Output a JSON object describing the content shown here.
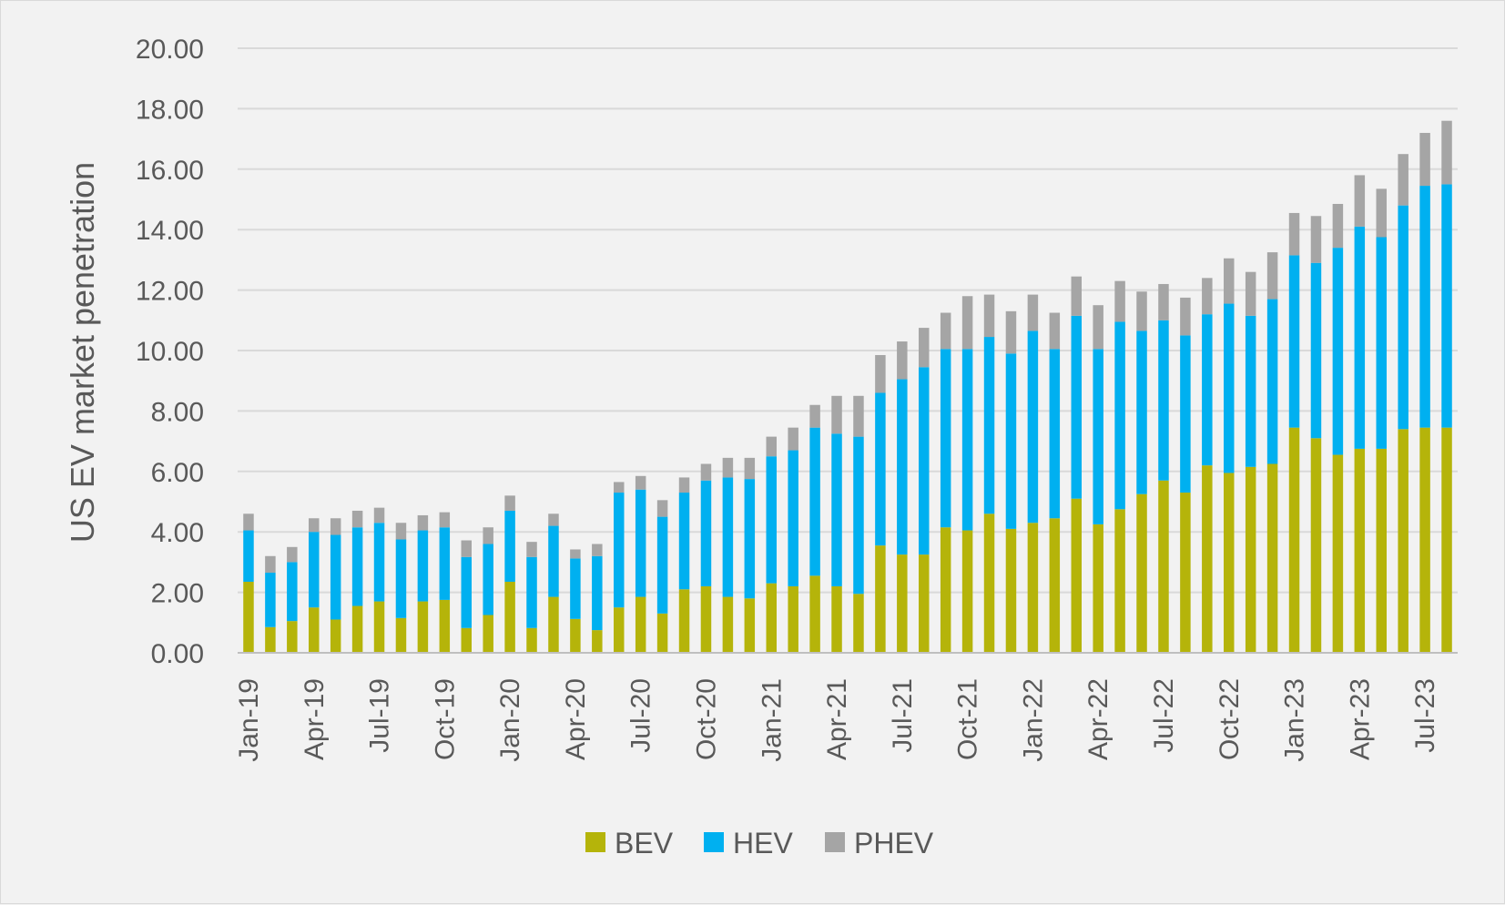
{
  "chart_data": {
    "type": "bar",
    "stacked": true,
    "title": "",
    "xlabel": "",
    "ylabel": "US EV market penetration",
    "ylim": [
      0,
      20
    ],
    "yticks": [
      "0.00",
      "2.00",
      "4.00",
      "6.00",
      "8.00",
      "10.00",
      "12.00",
      "14.00",
      "16.00",
      "18.00",
      "20.00"
    ],
    "grid": true,
    "legend_position": "bottom",
    "categories": [
      "Jan-19",
      "Feb-19",
      "Mar-19",
      "Apr-19",
      "May-19",
      "Jun-19",
      "Jul-19",
      "Aug-19",
      "Sep-19",
      "Oct-19",
      "Nov-19",
      "Dec-19",
      "Jan-20",
      "Feb-20",
      "Mar-20",
      "Apr-20",
      "May-20",
      "Jun-20",
      "Jul-20",
      "Aug-20",
      "Sep-20",
      "Oct-20",
      "Nov-20",
      "Dec-20",
      "Jan-21",
      "Feb-21",
      "Mar-21",
      "Apr-21",
      "May-21",
      "Jun-21",
      "Jul-21",
      "Aug-21",
      "Sep-21",
      "Oct-21",
      "Nov-21",
      "Dec-21",
      "Jan-22",
      "Feb-22",
      "Mar-22",
      "Apr-22",
      "May-22",
      "Jun-22",
      "Jul-22",
      "Aug-22",
      "Sep-22",
      "Oct-22",
      "Nov-22",
      "Dec-22",
      "Jan-23",
      "Feb-23",
      "Mar-23",
      "Apr-23",
      "May-23",
      "Jun-23",
      "Jul-23",
      "Aug-23"
    ],
    "tick_labels": [
      "Jan-19",
      "Apr-19",
      "Jul-19",
      "Oct-19",
      "Jan-20",
      "Apr-20",
      "Jul-20",
      "Oct-20",
      "Jan-21",
      "Apr-21",
      "Jul-21",
      "Oct-21",
      "Jan-22",
      "Apr-22",
      "Jul-22",
      "Oct-22",
      "Jan-23",
      "Apr-23",
      "Jul-23"
    ],
    "series": [
      {
        "name": "BEV",
        "color": "#b5b40a",
        "values": [
          2.35,
          0.85,
          1.05,
          1.5,
          1.1,
          1.55,
          1.7,
          1.15,
          1.7,
          1.75,
          0.82,
          1.25,
          2.35,
          0.82,
          1.85,
          1.12,
          0.75,
          1.5,
          1.85,
          1.3,
          2.1,
          2.2,
          1.85,
          1.8,
          2.3,
          2.2,
          2.55,
          2.2,
          1.95,
          3.55,
          3.25,
          3.25,
          4.15,
          4.05,
          4.6,
          4.1,
          4.3,
          4.45,
          5.1,
          4.25,
          4.75,
          5.25,
          5.7,
          5.3,
          6.2,
          5.95,
          6.15,
          6.25,
          7.45,
          7.1,
          6.55,
          6.75,
          6.75,
          7.4,
          7.45,
          7.45
        ]
      },
      {
        "name": "HEV",
        "color": "#00b0f0",
        "values": [
          1.7,
          1.8,
          1.95,
          2.5,
          2.8,
          2.6,
          2.6,
          2.6,
          2.35,
          2.4,
          2.35,
          2.35,
          2.35,
          2.35,
          2.35,
          2.0,
          2.45,
          3.8,
          3.55,
          3.2,
          3.2,
          3.5,
          3.95,
          3.95,
          4.2,
          4.5,
          4.9,
          5.05,
          5.2,
          5.05,
          5.8,
          6.2,
          5.9,
          6.0,
          5.85,
          5.8,
          6.35,
          5.6,
          6.05,
          5.8,
          6.2,
          5.4,
          5.3,
          5.2,
          5.0,
          5.6,
          5.0,
          5.45,
          5.7,
          5.8,
          6.85,
          7.35,
          7.0,
          7.4,
          8.0,
          8.05
        ]
      },
      {
        "name": "PHEV",
        "color": "#a5a5a5",
        "values": [
          0.55,
          0.55,
          0.5,
          0.45,
          0.55,
          0.55,
          0.5,
          0.55,
          0.5,
          0.5,
          0.55,
          0.55,
          0.5,
          0.5,
          0.4,
          0.3,
          0.4,
          0.35,
          0.45,
          0.55,
          0.5,
          0.55,
          0.65,
          0.7,
          0.65,
          0.75,
          0.75,
          1.25,
          1.35,
          1.25,
          1.25,
          1.3,
          1.2,
          1.75,
          1.4,
          1.4,
          1.2,
          1.2,
          1.3,
          1.45,
          1.35,
          1.3,
          1.2,
          1.25,
          1.2,
          1.5,
          1.45,
          1.55,
          1.4,
          1.55,
          1.45,
          1.7,
          1.6,
          1.7,
          1.75,
          2.1
        ]
      }
    ]
  }
}
